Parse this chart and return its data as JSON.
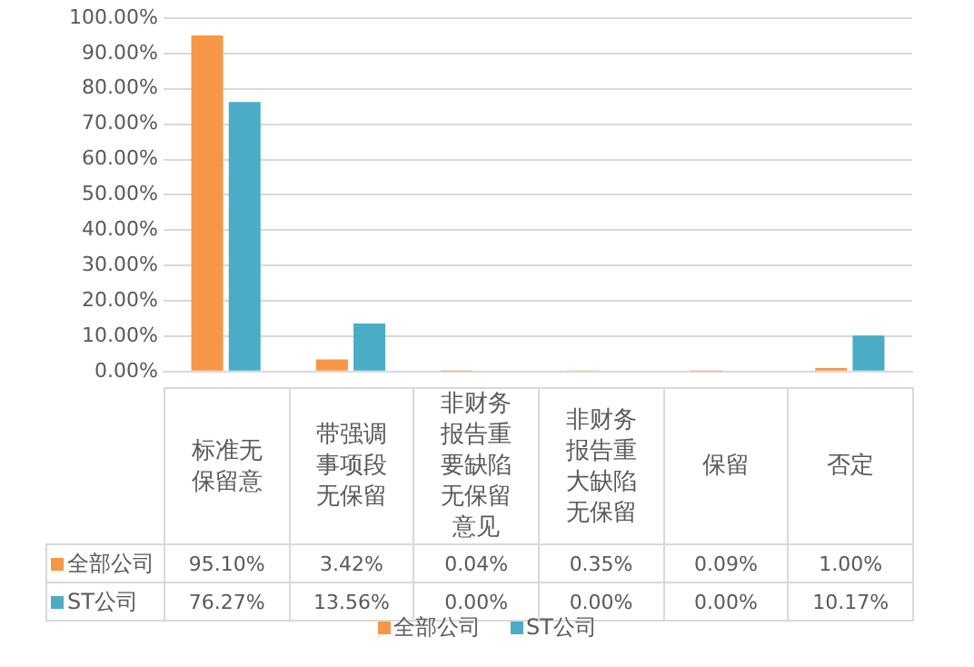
{
  "chart_data": {
    "type": "bar",
    "categories": [
      "标准无保留意",
      "带强调事项段无保留",
      "非财务报告重要缺陷无保留意见",
      "非财务报告重大缺陷无保留",
      "保留",
      "否定"
    ],
    "series": [
      {
        "name": "全部公司",
        "color": "#f79646",
        "values": [
          95.1,
          3.42,
          0.04,
          0.35,
          0.09,
          1.0
        ],
        "value_labels": [
          "95.10%",
          "3.42%",
          "0.04%",
          "0.35%",
          "0.09%",
          "1.00%"
        ]
      },
      {
        "name": "ST公司",
        "color": "#4bacc6",
        "values": [
          76.27,
          13.56,
          0,
          0,
          0,
          10.17
        ],
        "value_labels": [
          "76.27%",
          "13.56%",
          "0.00%",
          "0.00%",
          "0.00%",
          "10.17%"
        ]
      }
    ],
    "ylim": [
      0,
      100
    ],
    "yticks": [
      {
        "value": 0,
        "label": "0.00%"
      },
      {
        "value": 10,
        "label": "10.00%"
      },
      {
        "value": 20,
        "label": "20.00%"
      },
      {
        "value": 30,
        "label": "30.00%"
      },
      {
        "value": 40,
        "label": "40.00%"
      },
      {
        "value": 50,
        "label": "50.00%"
      },
      {
        "value": 60,
        "label": "60.00%"
      },
      {
        "value": 70,
        "label": "70.00%"
      },
      {
        "value": 80,
        "label": "80.00%"
      },
      {
        "value": 90,
        "label": "90.00%"
      },
      {
        "value": 100,
        "label": "100.00%"
      }
    ],
    "grid": "y",
    "legend": "bottom"
  }
}
